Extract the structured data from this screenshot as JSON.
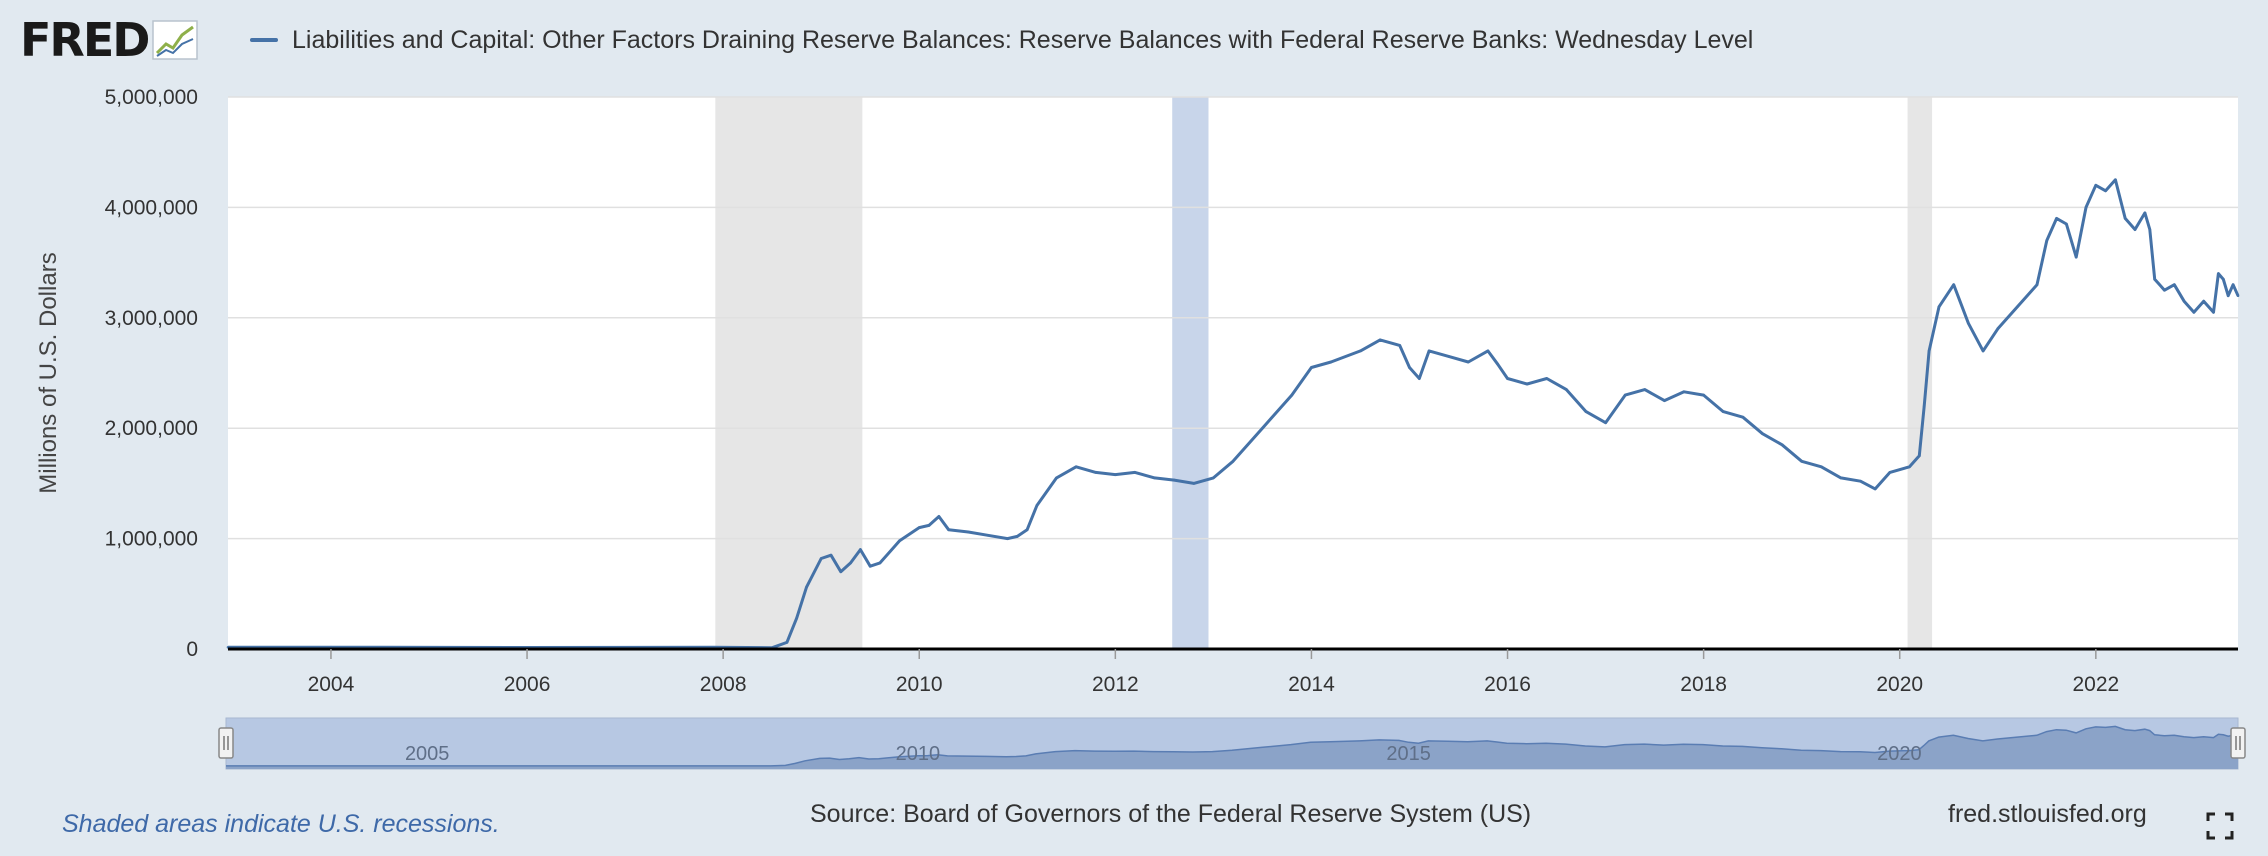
{
  "header": {
    "logo_text": "FRED",
    "logo_icon": "fred-graph-icon",
    "legend_label": "Liabilities and Capital: Other Factors Draining Reserve Balances: Reserve Balances with Federal Reserve Banks: Wednesday Level"
  },
  "footer": {
    "note": "Shaded areas indicate U.S. recessions.",
    "source": "Source: Board of Governors of the Federal Reserve System (US)",
    "site": "fred.stlouisfed.org",
    "fullscreen_icon": "expand-icon"
  },
  "colors": {
    "line": "#4572a7",
    "recession": "#e6e6e6",
    "highlight": "#c8d5ea",
    "navigator_fill": "#8ba3c8",
    "navigator_window": "#b7c8e3",
    "background": "#e1e9f0"
  },
  "chart_data": {
    "type": "line",
    "title": "",
    "xlabel": "",
    "ylabel": "Millions of U.S. Dollars",
    "xlim": [
      2002.95,
      2023.45
    ],
    "ylim": [
      0,
      5000000
    ],
    "x_ticks": [
      "2004",
      "2006",
      "2008",
      "2010",
      "2012",
      "2014",
      "2016",
      "2018",
      "2020",
      "2022"
    ],
    "y_ticks": [
      "0",
      "1,000,000",
      "2,000,000",
      "3,000,000",
      "4,000,000",
      "5,000,000"
    ],
    "grid": true,
    "legend_position": "top",
    "recessions": [
      [
        2007.92,
        2009.42
      ],
      [
        2020.08,
        2020.33
      ]
    ],
    "highlight_bands": [
      [
        2012.58,
        2012.95
      ]
    ],
    "navigator": {
      "labels": [
        "2005",
        "2010",
        "2015",
        "2020"
      ]
    },
    "series": [
      {
        "name": "Liabilities and Capital: Other Factors Draining Reserve Balances: Reserve Balances with Federal Reserve Banks: Wednesday Level",
        "points": [
          [
            2002.95,
            15000
          ],
          [
            2004,
            16000
          ],
          [
            2006,
            14000
          ],
          [
            2007.9,
            15000
          ],
          [
            2008.5,
            12000
          ],
          [
            2008.65,
            60000
          ],
          [
            2008.75,
            280000
          ],
          [
            2008.85,
            560000
          ],
          [
            2009.0,
            820000
          ],
          [
            2009.1,
            850000
          ],
          [
            2009.2,
            700000
          ],
          [
            2009.3,
            780000
          ],
          [
            2009.4,
            900000
          ],
          [
            2009.5,
            750000
          ],
          [
            2009.6,
            780000
          ],
          [
            2009.8,
            980000
          ],
          [
            2010.0,
            1100000
          ],
          [
            2010.1,
            1120000
          ],
          [
            2010.2,
            1200000
          ],
          [
            2010.3,
            1080000
          ],
          [
            2010.5,
            1060000
          ],
          [
            2010.7,
            1030000
          ],
          [
            2010.9,
            1000000
          ],
          [
            2011.0,
            1020000
          ],
          [
            2011.1,
            1080000
          ],
          [
            2011.2,
            1300000
          ],
          [
            2011.4,
            1550000
          ],
          [
            2011.6,
            1650000
          ],
          [
            2011.8,
            1600000
          ],
          [
            2012.0,
            1580000
          ],
          [
            2012.2,
            1600000
          ],
          [
            2012.4,
            1550000
          ],
          [
            2012.6,
            1530000
          ],
          [
            2012.8,
            1500000
          ],
          [
            2013.0,
            1550000
          ],
          [
            2013.2,
            1700000
          ],
          [
            2013.5,
            2000000
          ],
          [
            2013.8,
            2300000
          ],
          [
            2014.0,
            2550000
          ],
          [
            2014.2,
            2600000
          ],
          [
            2014.5,
            2700000
          ],
          [
            2014.7,
            2800000
          ],
          [
            2014.9,
            2750000
          ],
          [
            2015.0,
            2550000
          ],
          [
            2015.1,
            2450000
          ],
          [
            2015.2,
            2700000
          ],
          [
            2015.4,
            2650000
          ],
          [
            2015.6,
            2600000
          ],
          [
            2015.8,
            2700000
          ],
          [
            2015.9,
            2580000
          ],
          [
            2016.0,
            2450000
          ],
          [
            2016.2,
            2400000
          ],
          [
            2016.4,
            2450000
          ],
          [
            2016.6,
            2350000
          ],
          [
            2016.8,
            2150000
          ],
          [
            2017.0,
            2050000
          ],
          [
            2017.2,
            2300000
          ],
          [
            2017.4,
            2350000
          ],
          [
            2017.6,
            2250000
          ],
          [
            2017.8,
            2330000
          ],
          [
            2018.0,
            2300000
          ],
          [
            2018.2,
            2150000
          ],
          [
            2018.4,
            2100000
          ],
          [
            2018.6,
            1950000
          ],
          [
            2018.8,
            1850000
          ],
          [
            2019.0,
            1700000
          ],
          [
            2019.2,
            1650000
          ],
          [
            2019.4,
            1550000
          ],
          [
            2019.6,
            1520000
          ],
          [
            2019.75,
            1450000
          ],
          [
            2019.9,
            1600000
          ],
          [
            2020.1,
            1650000
          ],
          [
            2020.2,
            1750000
          ],
          [
            2020.25,
            2200000
          ],
          [
            2020.3,
            2700000
          ],
          [
            2020.4,
            3100000
          ],
          [
            2020.55,
            3300000
          ],
          [
            2020.7,
            2950000
          ],
          [
            2020.85,
            2700000
          ],
          [
            2021.0,
            2900000
          ],
          [
            2021.2,
            3100000
          ],
          [
            2021.4,
            3300000
          ],
          [
            2021.5,
            3700000
          ],
          [
            2021.6,
            3900000
          ],
          [
            2021.7,
            3850000
          ],
          [
            2021.8,
            3550000
          ],
          [
            2021.9,
            4000000
          ],
          [
            2022.0,
            4200000
          ],
          [
            2022.1,
            4150000
          ],
          [
            2022.2,
            4250000
          ],
          [
            2022.3,
            3900000
          ],
          [
            2022.4,
            3800000
          ],
          [
            2022.5,
            3950000
          ],
          [
            2022.55,
            3800000
          ],
          [
            2022.6,
            3350000
          ],
          [
            2022.7,
            3250000
          ],
          [
            2022.8,
            3300000
          ],
          [
            2022.9,
            3150000
          ],
          [
            2023.0,
            3050000
          ],
          [
            2023.1,
            3150000
          ],
          [
            2023.2,
            3050000
          ],
          [
            2023.25,
            3400000
          ],
          [
            2023.3,
            3350000
          ],
          [
            2023.35,
            3200000
          ],
          [
            2023.4,
            3300000
          ],
          [
            2023.45,
            3200000
          ]
        ]
      }
    ]
  }
}
